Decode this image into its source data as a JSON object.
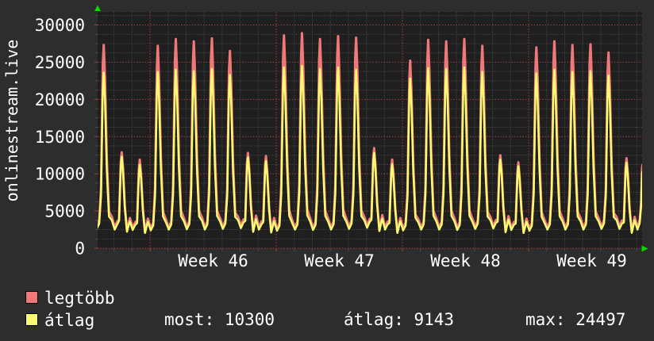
{
  "colors": {
    "background": "#2d2d2d",
    "plot_background": "#1f1f1f",
    "grid_minor": "#4a4a4a",
    "grid_major": "#9e4040",
    "text": "#ffffff",
    "arrow": "#00dd00",
    "series_max": "#f07878",
    "series_avg": "#fafa70"
  },
  "legend": [
    {
      "label": "legtöbb",
      "color": "#f07878"
    },
    {
      "label": "átlag",
      "color": "#fafa70"
    }
  ],
  "stats": [
    {
      "name": "most",
      "text": "most: 10300"
    },
    {
      "name": "átlag",
      "text": "átlag: 9143"
    },
    {
      "name": "max",
      "text": "max: 24497"
    }
  ],
  "chart_data": {
    "type": "line",
    "title": "",
    "ylabel": "onlinestream.live",
    "xlabel": "",
    "x_tick_labels": [
      "Week 46",
      "Week 47",
      "Week 48",
      "Week 49"
    ],
    "x_label_center_day": [
      6.5,
      13.5,
      20.5,
      27.5
    ],
    "week_start_day_indices": [
      3,
      10,
      17,
      24
    ],
    "y_ticks": [
      0,
      5000,
      10000,
      15000,
      20000,
      25000,
      30000
    ],
    "y_minor_step": 1250,
    "ylim": [
      0,
      31800
    ],
    "grid": true,
    "legend_position": "bottom-left",
    "series": [
      {
        "name": "legtöbb",
        "color": "#f07878",
        "role": "daily-max"
      },
      {
        "name": "átlag",
        "color": "#fafa70",
        "role": "daily-average"
      }
    ],
    "stats_values": {
      "most": 10300,
      "atlag": 9143,
      "max": 24497
    },
    "days": [
      {
        "day": "Fri",
        "week": 45,
        "max": 27300,
        "avg": 23600,
        "night_min": 2600
      },
      {
        "day": "Sat",
        "week": 45,
        "max": 12900,
        "avg": 12300,
        "night_min": 2500
      },
      {
        "day": "Sun",
        "week": 45,
        "max": 11900,
        "avg": 11200,
        "night_min": 2450
      },
      {
        "day": "Mon",
        "week": 46,
        "max": 27200,
        "avg": 23700,
        "night_min": 2400
      },
      {
        "day": "Tue",
        "week": 46,
        "max": 28100,
        "avg": 24000,
        "night_min": 2500
      },
      {
        "day": "Wed",
        "week": 46,
        "max": 27800,
        "avg": 23800,
        "night_min": 2550
      },
      {
        "day": "Thu",
        "week": 46,
        "max": 28200,
        "avg": 24100,
        "night_min": 2500
      },
      {
        "day": "Fri",
        "week": 46,
        "max": 26500,
        "avg": 23300,
        "night_min": 2600
      },
      {
        "day": "Sat",
        "week": 46,
        "max": 12800,
        "avg": 12200,
        "night_min": 2700
      },
      {
        "day": "Sun",
        "week": 46,
        "max": 12400,
        "avg": 11700,
        "night_min": 2500
      },
      {
        "day": "Mon",
        "week": 47,
        "max": 28600,
        "avg": 24300,
        "night_min": 2350
      },
      {
        "day": "Tue",
        "week": 47,
        "max": 28900,
        "avg": 24497,
        "night_min": 2500
      },
      {
        "day": "Wed",
        "week": 47,
        "max": 28100,
        "avg": 24100,
        "night_min": 2450
      },
      {
        "day": "Thu",
        "week": 47,
        "max": 28500,
        "avg": 24300,
        "night_min": 2500
      },
      {
        "day": "Fri",
        "week": 47,
        "max": 28300,
        "avg": 24000,
        "night_min": 2600
      },
      {
        "day": "Sat",
        "week": 47,
        "max": 13450,
        "avg": 12800,
        "night_min": 2750
      },
      {
        "day": "Sun",
        "week": 47,
        "max": 11900,
        "avg": 11300,
        "night_min": 2500
      },
      {
        "day": "Mon",
        "week": 48,
        "max": 25200,
        "avg": 22800,
        "night_min": 2400
      },
      {
        "day": "Tue",
        "week": 48,
        "max": 28000,
        "avg": 24200,
        "night_min": 2500
      },
      {
        "day": "Wed",
        "week": 48,
        "max": 27800,
        "avg": 24100,
        "night_min": 2500
      },
      {
        "day": "Thu",
        "week": 48,
        "max": 28100,
        "avg": 24300,
        "night_min": 2450
      },
      {
        "day": "Fri",
        "week": 48,
        "max": 27200,
        "avg": 23700,
        "night_min": 2600
      },
      {
        "day": "Sat",
        "week": 48,
        "max": 12500,
        "avg": 11900,
        "night_min": 2650
      },
      {
        "day": "Sun",
        "week": 48,
        "max": 11550,
        "avg": 11000,
        "night_min": 2450
      },
      {
        "day": "Mon",
        "week": 49,
        "max": 27000,
        "avg": 23500,
        "night_min": 2350
      },
      {
        "day": "Tue",
        "week": 49,
        "max": 27800,
        "avg": 24000,
        "night_min": 2500
      },
      {
        "day": "Wed",
        "week": 49,
        "max": 27300,
        "avg": 23700,
        "night_min": 2500
      },
      {
        "day": "Thu",
        "week": 49,
        "max": 27400,
        "avg": 23800,
        "night_min": 2500
      },
      {
        "day": "Fri",
        "week": 49,
        "max": 26300,
        "avg": 23200,
        "night_min": 2600
      },
      {
        "day": "Sat",
        "week": 49,
        "max": 12100,
        "avg": 11500,
        "night_min": 2600
      },
      {
        "day": "Sun",
        "week": 49,
        "partial": true,
        "end_max": 11200,
        "end_avg": 10300,
        "night_min": 2500
      }
    ],
    "day_profile": [
      {
        "t": 0.04,
        "ref": "trough",
        "mul": 1.0
      },
      {
        "t": 0.18,
        "ref": "trough",
        "mul": 1.28
      },
      {
        "t": 0.28,
        "ref": "peak",
        "mul": 0.3
      },
      {
        "t": 0.38,
        "ref": "peak",
        "mul": 0.9
      },
      {
        "t": 0.43,
        "ref": "peak",
        "mul": 1.0
      },
      {
        "t": 0.5,
        "ref": "peak",
        "mul": 0.84
      },
      {
        "t": 0.6,
        "ref": "peak",
        "mul": 0.45
      },
      {
        "t": 0.72,
        "ref": "peak",
        "mul": 0.18
      },
      {
        "t": 0.88,
        "ref": "trough",
        "mul": 1.45
      }
    ],
    "last_day_profile": [
      {
        "t": 0.04,
        "ref": "trough",
        "mul": 1.0
      },
      {
        "t": 0.16,
        "ref": "trough",
        "mul": 1.35
      },
      {
        "t": 0.24,
        "ref": "end",
        "mul": 0.55
      },
      {
        "t": 0.29,
        "ref": "end",
        "mul": 0.96
      },
      {
        "t": 0.315,
        "ref": "end",
        "mul": 1.0
      }
    ]
  }
}
